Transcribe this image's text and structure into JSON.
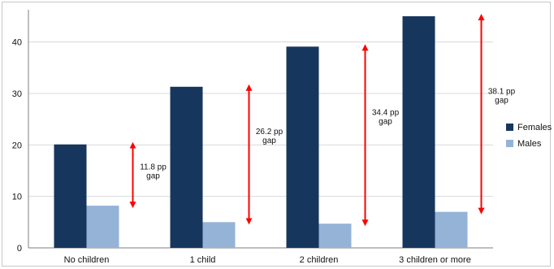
{
  "chart_data": {
    "type": "bar",
    "categories": [
      "No children",
      "1 child",
      "2 children",
      "3 children or more"
    ],
    "series": [
      {
        "name": "Females",
        "values": [
          20.1,
          31.3,
          39.1,
          45.0
        ],
        "color": "#17365d"
      },
      {
        "name": "Males",
        "values": [
          8.2,
          5.0,
          4.7,
          7.0
        ],
        "color": "#95b3d7"
      }
    ],
    "ylim": [
      0,
      45
    ],
    "yticks": [
      "0",
      "10",
      "20",
      "30",
      "40"
    ],
    "grid": true,
    "legend_position": "right",
    "annotations": [
      {
        "line1": "11.8 pp",
        "line2": "gap"
      },
      {
        "line1": "26.2 pp",
        "line2": "gap"
      },
      {
        "line1": "34.4 pp",
        "line2": "gap"
      },
      {
        "line1": "38.1 pp",
        "line2": "gap"
      }
    ],
    "arrow_color": "#ff0000"
  }
}
